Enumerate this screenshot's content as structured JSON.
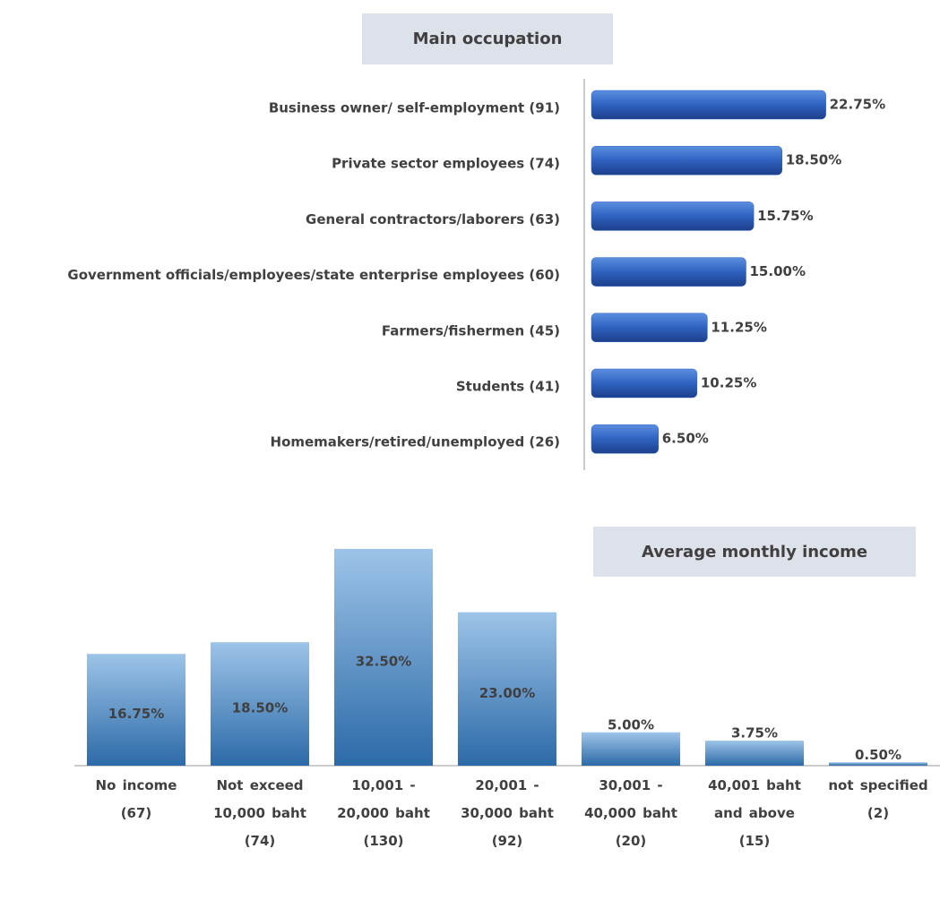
{
  "chart_data": [
    {
      "type": "hbar",
      "title": "Main occupation",
      "categories": [
        "Business owner/ self-employment (91)",
        "Private sector employees (74)",
        "General contractors/laborers (63)",
        "Government officials/employees/state enterprise employees (60)",
        "Farmers/fishermen (45)",
        "Students (41)",
        "Homemakers/retired/unemployed (26)"
      ],
      "values": [
        22.75,
        18.5,
        15.75,
        15,
        11.25,
        10.25,
        6.5
      ],
      "value_labels": [
        "22.75%",
        "18.50%",
        "15.75%",
        "15.00%",
        "11.25%",
        "10.25%",
        "6.50%"
      ],
      "color": "#2f62c0"
    },
    {
      "type": "bar",
      "title": "Average monthly income",
      "categories": [
        "No income (67)",
        "Not exceed 10,000 baht (74)",
        "10,001 - 20,000 baht (130)",
        "20,001 - 30,000 baht (92)",
        "30,001 - 40,000 baht (20)",
        "40,001 baht and above (15)",
        "not specified (2)"
      ],
      "values": [
        16.75,
        18.5,
        32.5,
        23,
        5,
        3.75,
        0.5
      ],
      "value_labels": [
        "16.75%",
        "18.50%",
        "32.50%",
        "23.00%",
        "5.00%",
        "3.75%",
        "0.50%"
      ],
      "color": "#3a7cbc"
    }
  ]
}
